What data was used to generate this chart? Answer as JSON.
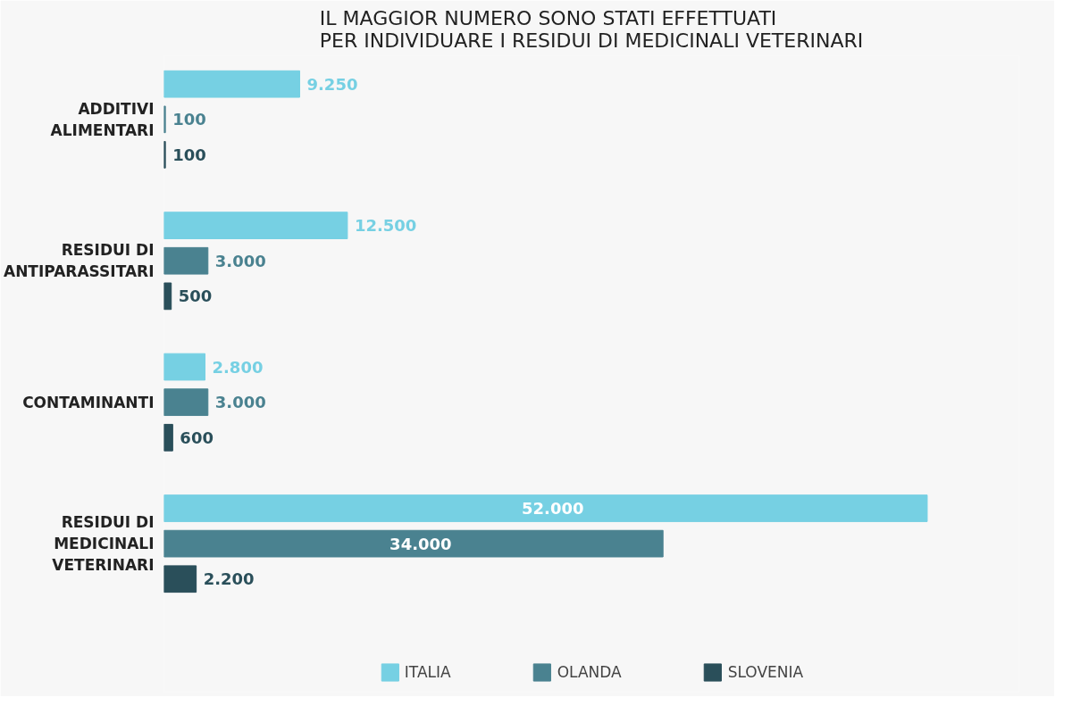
{
  "chart_data": {
    "type": "bar",
    "orientation": "horizontal",
    "title": "IL MAGGIOR NUMERO SONO STATI EFFETTUATI\nPER INDIVIDUARE I RESIDUI DI MEDICINALI VETERINARI",
    "categories": [
      "ADDITIVI\nALIMENTARI",
      "RESIDUI DI\nANTIPARASSITARI",
      "CONTAMINANTI",
      "RESIDUI DI\nMEDICINALI\nVETERINARI"
    ],
    "series": [
      {
        "name": "ITALIA",
        "color": "#76d0e3",
        "values": [
          9250,
          12500,
          2800,
          52000
        ],
        "value_labels": [
          "9.250",
          "12.500",
          "2.800",
          "52.000"
        ]
      },
      {
        "name": "OLANDA",
        "color": "#4a8290",
        "values": [
          100,
          3000,
          3000,
          34000
        ],
        "value_labels": [
          "100",
          "3.000",
          "3.000",
          "34.000"
        ]
      },
      {
        "name": "SLOVENIA",
        "color": "#2a4f5a",
        "values": [
          100,
          500,
          600,
          2200
        ],
        "value_labels": [
          "100",
          "500",
          "600",
          "2.200"
        ]
      }
    ],
    "legend": "bottom",
    "grid": false
  }
}
